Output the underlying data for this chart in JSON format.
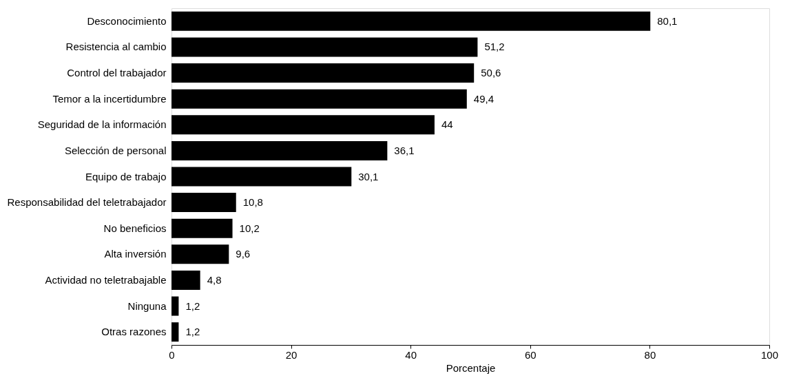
{
  "chart_data": {
    "type": "bar",
    "orientation": "horizontal",
    "xlabel": "Porcentaje",
    "categories": [
      "Desconocimiento",
      "Resistencia al cambio",
      "Control del trabajador",
      "Temor a la incertidumbre",
      "Seguridad de la información",
      "Selección de personal",
      "Equipo de trabajo",
      "Responsabilidad del teletrabajador",
      "No beneficios",
      "Alta inversión",
      "Actividad no teletrabajable",
      "Ninguna",
      "Otras razones"
    ],
    "values": [
      80.1,
      51.2,
      50.6,
      49.4,
      44,
      36.1,
      30.1,
      10.8,
      10.2,
      9.6,
      4.8,
      1.2,
      1.2
    ],
    "value_labels": [
      "80,1",
      "51,2",
      "50,6",
      "49,4",
      "44",
      "36,1",
      "30,1",
      "10,8",
      "10,2",
      "9,6",
      "4,8",
      "1,2",
      "1,2"
    ],
    "color": "#000000",
    "xlim": [
      0,
      100
    ],
    "xticks": [
      0,
      20,
      40,
      60,
      80,
      100
    ],
    "grid": false
  }
}
